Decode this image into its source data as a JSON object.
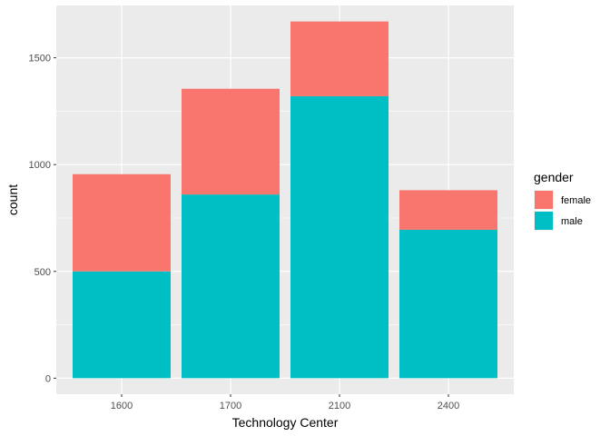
{
  "chart_data": {
    "type": "bar",
    "stacked": true,
    "categories": [
      "1600",
      "1700",
      "2100",
      "2400"
    ],
    "series": [
      {
        "name": "male",
        "values": [
          500,
          860,
          1320,
          695
        ],
        "color": "#00BFC4"
      },
      {
        "name": "female",
        "values": [
          455,
          495,
          350,
          185
        ],
        "color": "#F8766D"
      }
    ],
    "xlabel": "Technology Center",
    "ylabel": "count",
    "ylim": [
      -75,
      1745
    ],
    "yticks": [
      0,
      500,
      1000,
      1500
    ],
    "yticks_labels": [
      "0",
      "500",
      "1000",
      "1500"
    ],
    "grid": true,
    "legend": {
      "title": "gender",
      "placement": "right",
      "items": [
        {
          "label": "female",
          "color": "#F8766D"
        },
        {
          "label": "male",
          "color": "#00BFC4"
        }
      ]
    },
    "colors": {
      "panel": "#EBEBEB",
      "grid": "#FFFFFF"
    }
  }
}
